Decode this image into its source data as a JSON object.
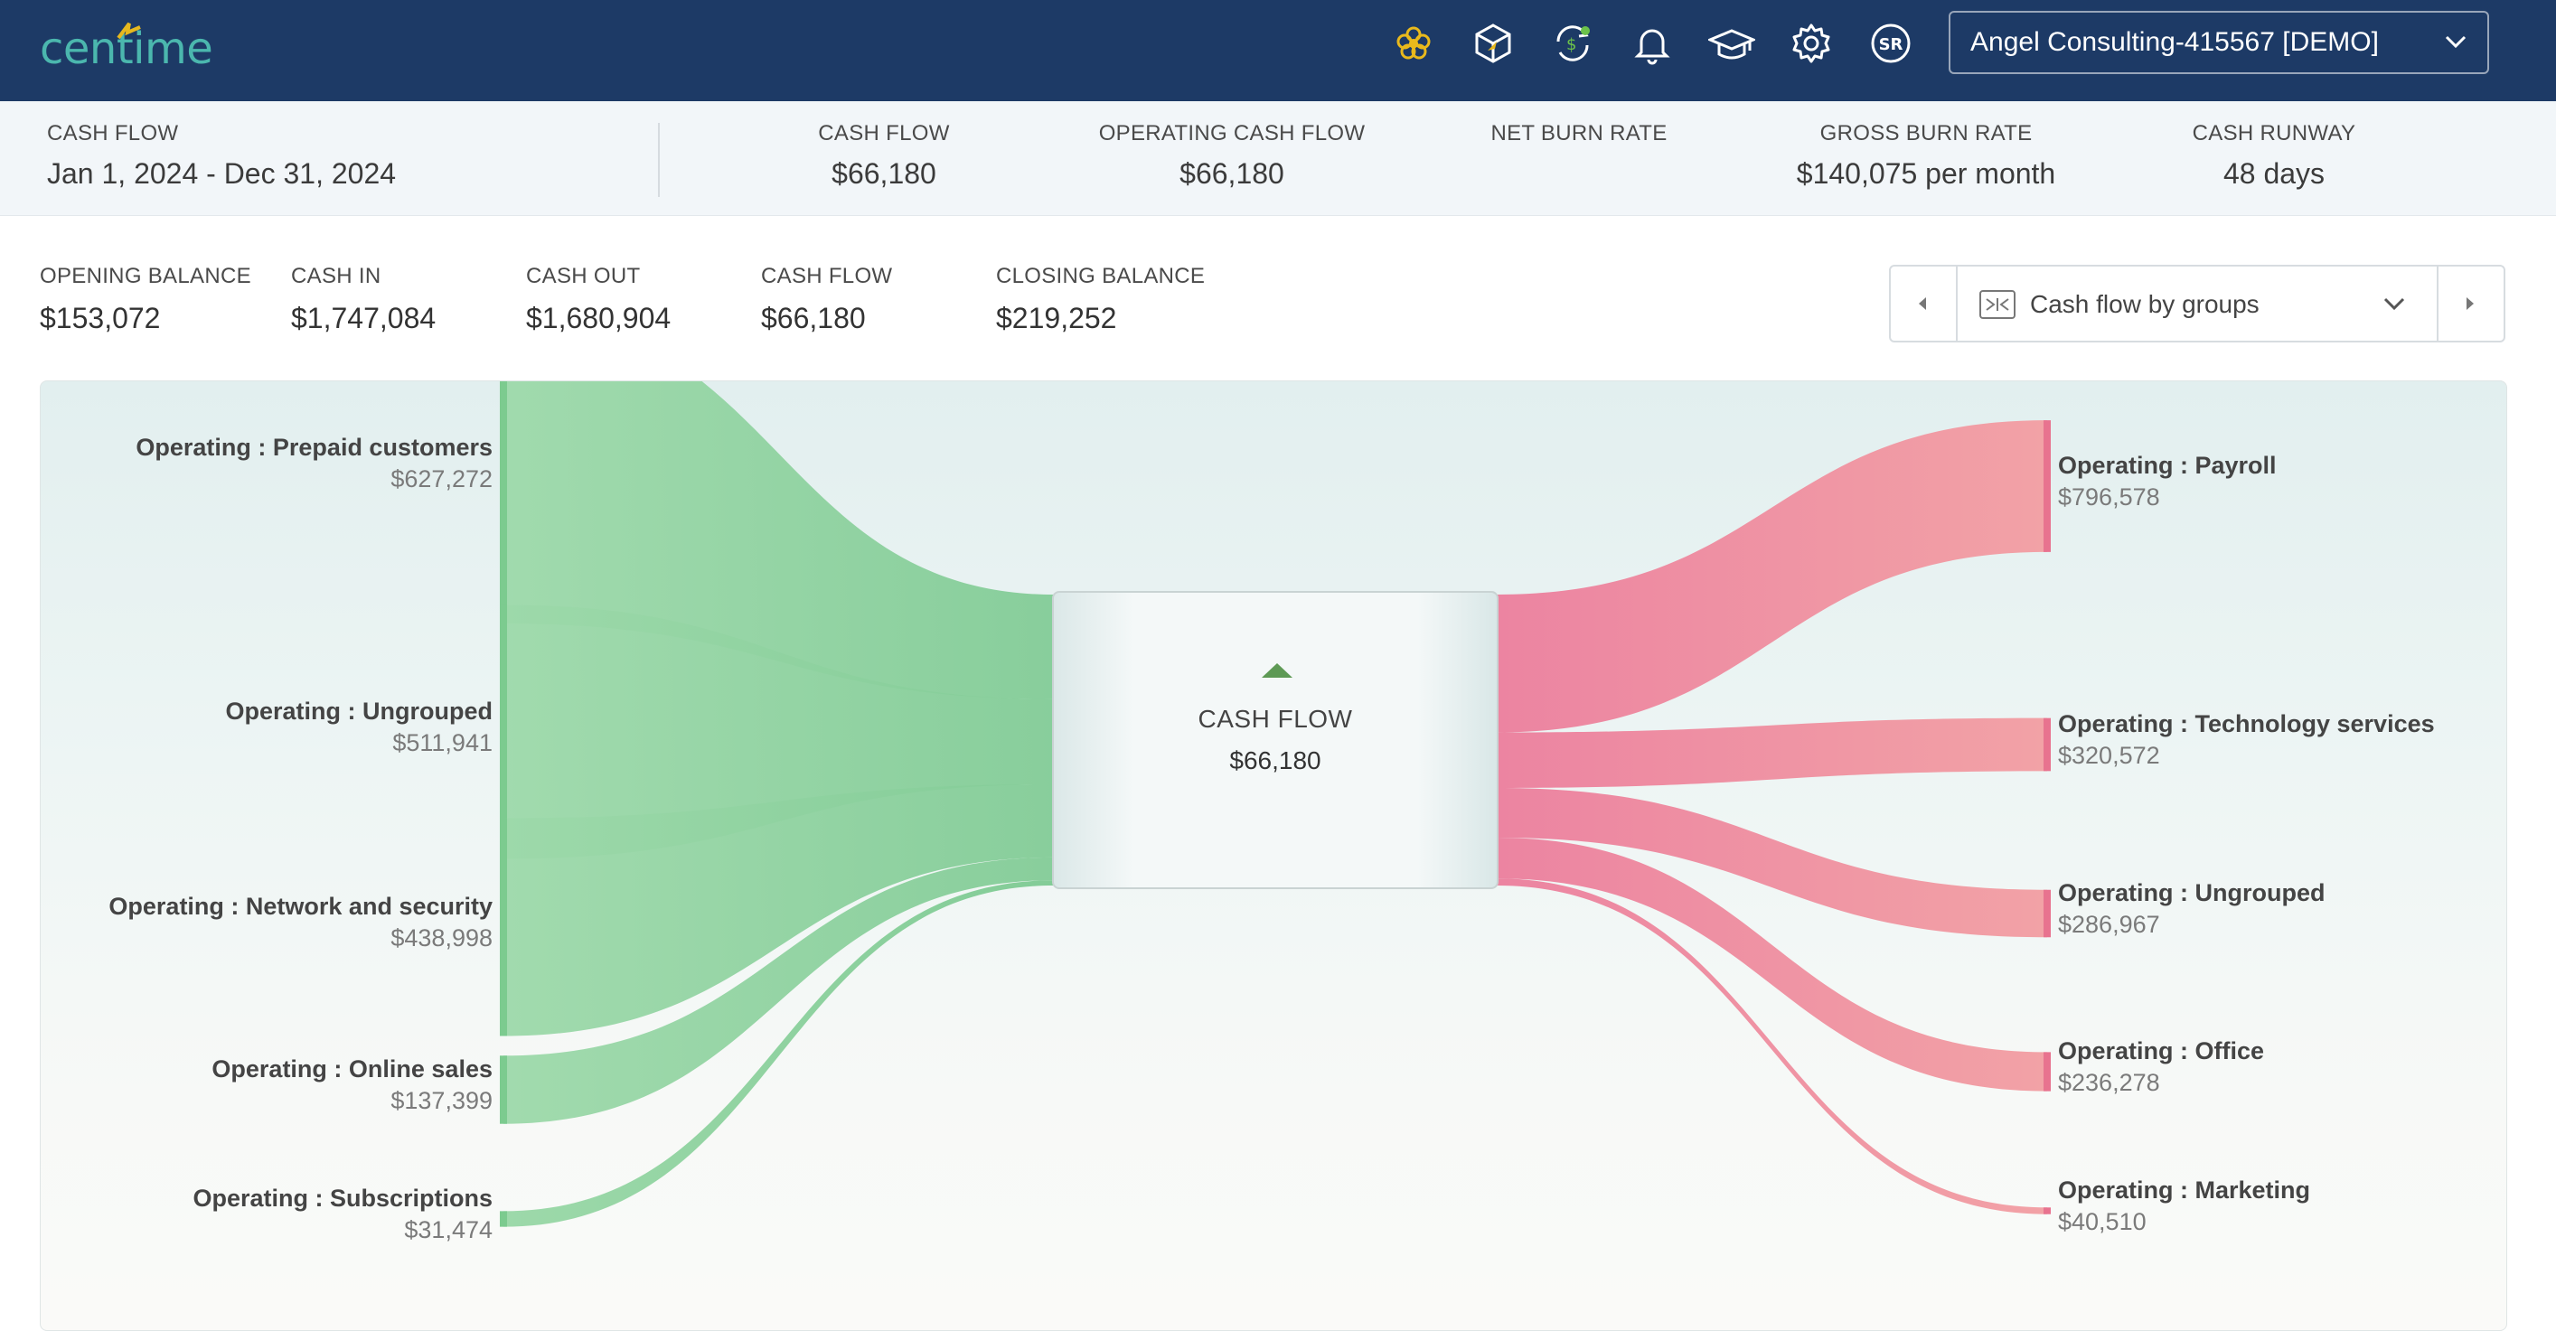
{
  "brand": {
    "name": "centime",
    "accent": "#4bb7ae",
    "mark_color": "#e6b81e"
  },
  "topbar": {
    "bg": "#1d3a66",
    "icons": [
      "flower-icon",
      "cube-icon",
      "sync-dollar-icon",
      "bell-icon",
      "graduation-cap-icon",
      "gear-icon",
      "user-initials-icon"
    ],
    "user_initials": "SR",
    "company": "Angel Consulting-415567 [DEMO]"
  },
  "summary": {
    "period_caption": "CASH FLOW",
    "period": "Jan 1, 2024 - Dec 31, 2024",
    "kpis": [
      {
        "caption": "CASH FLOW",
        "value": "$66,180"
      },
      {
        "caption": "OPERATING CASH FLOW",
        "value": "$66,180"
      },
      {
        "caption": "NET BURN RATE",
        "value": ""
      },
      {
        "caption": "GROSS BURN RATE",
        "value": "$140,075 per month"
      },
      {
        "caption": "CASH RUNWAY",
        "value": "48 days"
      }
    ]
  },
  "balances": [
    {
      "caption": "OPENING BALANCE",
      "value": "$153,072"
    },
    {
      "caption": "CASH IN",
      "value": "$1,747,084"
    },
    {
      "caption": "CASH OUT",
      "value": "$1,680,904"
    },
    {
      "caption": "CASH FLOW",
      "value": "$66,180"
    },
    {
      "caption": "CLOSING BALANCE",
      "value": "$219,252"
    }
  ],
  "view_switch": {
    "label": "Cash flow by groups"
  },
  "center": {
    "caption": "CASH FLOW",
    "value": "$66,180",
    "trend": "up",
    "trend_color": "#5e9a55"
  },
  "chart_data": {
    "type": "sankey",
    "center": {
      "label": "CASH FLOW",
      "value": 66180
    },
    "inflows": [
      {
        "name": "Operating : Prepaid customers",
        "value": 627272,
        "label": "$627,272"
      },
      {
        "name": "Operating : Ungrouped",
        "value": 511941,
        "label": "$511,941"
      },
      {
        "name": "Operating : Network and security",
        "value": 438998,
        "label": "$438,998"
      },
      {
        "name": "Operating : Online sales",
        "value": 137399,
        "label": "$137,399"
      },
      {
        "name": "Operating : Subscriptions",
        "value": 31474,
        "label": "$31,474"
      }
    ],
    "outflows": [
      {
        "name": "Operating : Payroll",
        "value": 796578,
        "label": "$796,578"
      },
      {
        "name": "Operating : Technology services",
        "value": 320572,
        "label": "$320,572"
      },
      {
        "name": "Operating : Ungrouped",
        "value": 286967,
        "label": "$286,967"
      },
      {
        "name": "Operating : Office",
        "value": 236278,
        "label": "$236,278"
      },
      {
        "name": "Operating : Marketing",
        "value": 40510,
        "label": "$40,510"
      }
    ],
    "inflow_color": "#8fd29f",
    "outflow_color": "#ef97a3"
  }
}
